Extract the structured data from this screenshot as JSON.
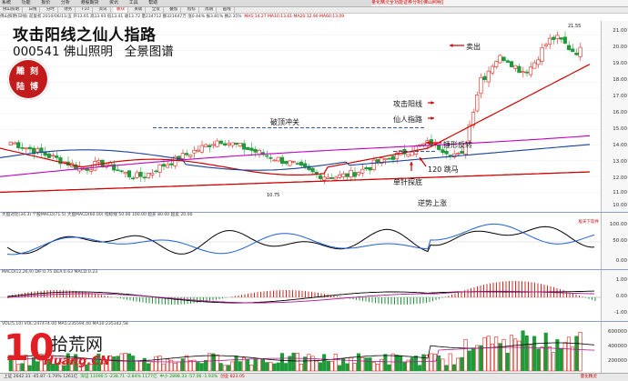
{
  "menubar": {
    "items": [
      "系统",
      "功能",
      "报价",
      "分析",
      "港股期货",
      "资讯",
      "工具",
      "帮助"
    ],
    "ad_text": "量化精灵全功能证券分析[佛山照明]"
  },
  "tabs": [
    "佛山照明",
    "日线",
    "分时",
    "财务",
    "F10",
    "资讯",
    "板块",
    "关联",
    "全景",
    "叠加",
    "指标",
    "周期",
    "画线"
  ],
  "active_tab_index": 6,
  "infoline": {
    "text": "佛山照明(日线) 前复权 2010/06/11/五 开13.65 高13.93 低13.41 收13.72 量234712 额321647万 涨0.44% 振3.81% 换2.35%",
    "ma_text": "MA5:14.27 MA10:13.61 MA20:12.90 MA60:13.09"
  },
  "overlay": {
    "title": "攻击阳线之仙人指路",
    "code": "000541",
    "name": "佛山照明",
    "subtitle_suffix": "全景图谱",
    "seal_chars": [
      "雕",
      "刻",
      "陆",
      "博"
    ]
  },
  "annotations": {
    "sell": "卖出",
    "attack": "攻击阳线",
    "fairy": "仙人指路",
    "break_top": "破顶冲关",
    "hammer": "锤形反转",
    "jump120": "120 跳马",
    "needle": "单针探底",
    "reverse": "逆势上涨",
    "low_label": "10.75",
    "high_label": "21.55"
  },
  "price_axis": [
    "21.00",
    "20.00",
    "19.00",
    "18.00",
    "17.00",
    "16.00",
    "15.00",
    "14.00",
    "13.00",
    "12.00",
    "11.00",
    "10.00"
  ],
  "indicator1": {
    "title": "大盘对比(34.3)  个股MACD(71.5)  大盘MACD(60.00)  指标线 50.00  100.00  超买 80.00  超卖 20.00",
    "axis": [
      "100.00",
      "50.00",
      "0.00"
    ]
  },
  "macd": {
    "title": "MACD(12,26,9)  DIF:0.75  DEA:0.63  MACD:0.23",
    "axis": [
      "1.00",
      "0.00",
      "-1.00"
    ]
  },
  "volume": {
    "title": "VOL(5,10)  VOL:247474.00  MA5:235594.40  MA10:235342.58",
    "axis": [
      "600000",
      "400000",
      "200000"
    ]
  },
  "bottombar": {
    "text": "上证 2642.31  -45.87  -1.70%  1261亿",
    "text2": "深证 11090.5  -238.71  -2.84%  1177亿",
    "text3": "中小 2898.33  -57.06  -1.93%",
    "text4": "创业 823.05",
    "brand": "量化精灵"
  },
  "watermark": {
    "num": "10",
    "cn": "拾荒网",
    "url": "Huang.CN"
  },
  "brand_small": "股天下软件",
  "colors": {
    "up": "#e0241b",
    "down": "#1f9a3a",
    "ma_red": "#d00000",
    "ma_purple": "#c000c0",
    "ma_blue": "#1b3f9b"
  }
}
